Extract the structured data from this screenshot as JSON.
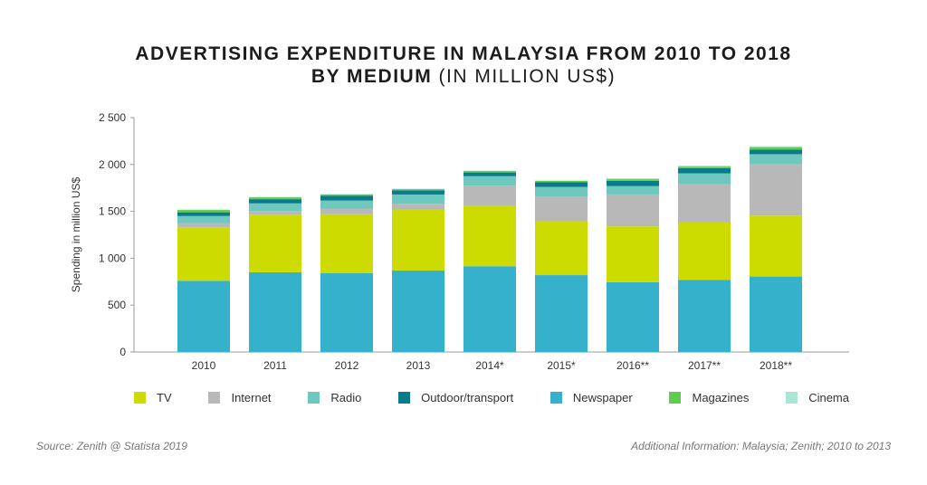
{
  "header": {
    "title_line1": "ADVERTISING EXPENDITURE IN MALAYSIA FROM 2010 TO 2018",
    "title_line2_bold": "BY MEDIUM",
    "title_line2_normal": " (IN MILLION US$)"
  },
  "footer": {
    "source": "Source: Zenith @ Statista 2019",
    "additional": "Additional Information: Malaysia; Zenith; 2010 to 2013"
  },
  "colors": {
    "TV": "#cddc00",
    "Internet": "#b8b8b8",
    "Radio": "#6fc8bd",
    "Outdoor/transport": "#0a7b8b",
    "Newspaper": "#36b1cb",
    "Magazines": "#5ccf4a",
    "Cinema": "#a8e6d6"
  },
  "chart_data": {
    "type": "bar",
    "stacked": true,
    "ylabel": "Spending in million US$",
    "ylim": [
      0,
      2500
    ],
    "yticks": [
      0,
      500,
      1000,
      1500,
      2000,
      2500
    ],
    "ytick_labels": [
      "0",
      "500",
      "1 000",
      "1 500",
      "2 000",
      "2 500"
    ],
    "categories": [
      "2010",
      "2011",
      "2012",
      "2013",
      "2014*",
      "2015*",
      "2016**",
      "2017**",
      "2018**"
    ],
    "legend_order": [
      "TV",
      "Internet",
      "Radio",
      "Outdoor/transport",
      "Newspaper",
      "Magazines",
      "Cinema"
    ],
    "series": [
      {
        "name": "Newspaper",
        "values": [
          760,
          850,
          840,
          870,
          915,
          820,
          745,
          770,
          805
        ]
      },
      {
        "name": "TV",
        "values": [
          570,
          610,
          630,
          650,
          640,
          575,
          595,
          615,
          650
        ]
      },
      {
        "name": "Internet",
        "values": [
          45,
          45,
          60,
          60,
          220,
          265,
          340,
          410,
          545
        ]
      },
      {
        "name": "Radio",
        "values": [
          75,
          80,
          85,
          100,
          100,
          100,
          90,
          110,
          110
        ]
      },
      {
        "name": "Outdoor/transport",
        "values": [
          40,
          45,
          50,
          45,
          40,
          50,
          55,
          55,
          50
        ]
      },
      {
        "name": "Magazines",
        "values": [
          25,
          20,
          15,
          12,
          15,
          15,
          18,
          18,
          25
        ]
      },
      {
        "name": "Cinema",
        "values": [
          5,
          5,
          5,
          5,
          5,
          5,
          10,
          10,
          10
        ]
      }
    ]
  }
}
